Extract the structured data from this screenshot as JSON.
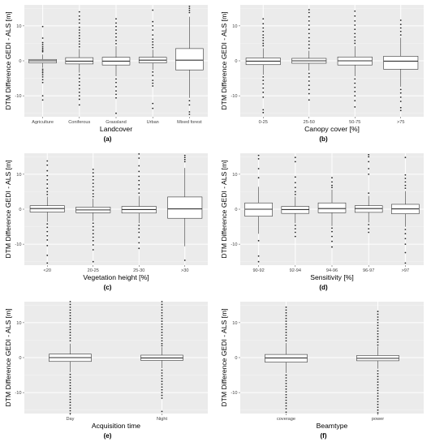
{
  "chart_data": [
    {
      "type": "box",
      "panel_label": "(a)",
      "xlabel": "Landcover",
      "ylabel": "DTM Difference GEDI - ALS [m]",
      "ylim": [
        -16,
        16
      ],
      "yticks": [
        10,
        0,
        -10
      ],
      "categories": [
        "Agriculture",
        "Coniferous",
        "Grassland",
        "Urban",
        "Mixed forest"
      ],
      "boxes": [
        {
          "q1": -0.6,
          "median": 0.0,
          "q3": 0.4,
          "whisker_low": -2.0,
          "whisker_high": 1.8,
          "outliers": [
            9.8,
            6.5,
            5.2,
            4.6,
            4.0,
            3.5,
            3.0,
            2.6,
            -2.4,
            -2.9,
            -3.4,
            -4.0,
            -4.6,
            -5.4,
            -6.2,
            -10.0,
            -11.2
          ]
        },
        {
          "q1": -0.9,
          "median": -0.1,
          "q3": 0.9,
          "whisker_low": -3.4,
          "whisker_high": 3.4,
          "outliers": [
            14.0,
            12.8,
            11.8,
            10.8,
            9.6,
            8.8,
            8.0,
            7.2,
            6.4,
            5.6,
            4.8,
            4.0,
            -4.0,
            -5.0,
            -6.0,
            -7.0,
            -8.0,
            -9.0,
            -10.0,
            -11.0,
            -12.6
          ]
        },
        {
          "q1": -1.2,
          "median": -0.1,
          "q3": 1.0,
          "whisker_low": -4.4,
          "whisker_high": 4.2,
          "outliers": [
            12.0,
            10.8,
            9.8,
            8.8,
            7.8,
            6.8,
            5.8,
            4.9,
            -5.2,
            -6.2,
            -7.4,
            -8.6,
            -9.6,
            -10.6,
            -15.0
          ]
        },
        {
          "q1": -0.6,
          "median": 0.2,
          "q3": 1.0,
          "whisker_low": -2.6,
          "whisker_high": 3.2,
          "outliers": [
            14.5,
            11.2,
            10.0,
            8.8,
            7.4,
            6.2,
            5.4,
            4.6,
            3.8,
            -3.2,
            -4.2,
            -5.6,
            -6.4,
            -7.2,
            -12.2,
            -13.6
          ]
        },
        {
          "q1": -2.6,
          "median": 0.2,
          "q3": 3.5,
          "whisker_low": -10.6,
          "whisker_high": 12.6,
          "outliers": [
            15.6,
            15.0,
            14.4,
            13.8,
            -11.4,
            -12.6,
            -14.6,
            -15.3
          ]
        }
      ]
    },
    {
      "type": "box",
      "panel_label": "(b)",
      "xlabel": "Canopy cover [%]",
      "ylabel": "DTM Difference GEDI - ALS [m]",
      "ylim": [
        -16,
        16
      ],
      "yticks": [
        10,
        0,
        -10
      ],
      "categories": [
        "0-25",
        "25-50",
        "50-75",
        ">75"
      ],
      "boxes": [
        {
          "q1": -1.1,
          "median": -0.1,
          "q3": 0.8,
          "whisker_low": -4.0,
          "whisker_high": 3.6,
          "outliers": [
            12.0,
            10.6,
            9.4,
            8.4,
            7.4,
            6.6,
            5.8,
            5.0,
            4.3,
            -4.6,
            -5.6,
            -6.6,
            -7.8,
            -9.0,
            -10.4,
            -14.0,
            -14.8
          ]
        },
        {
          "q1": -0.7,
          "median": 0.0,
          "q3": 0.7,
          "whisker_low": -2.8,
          "whisker_high": 2.9,
          "outliers": [
            14.6,
            13.8,
            12.6,
            11.4,
            10.2,
            9.0,
            7.8,
            6.6,
            5.6,
            4.6,
            3.6,
            -3.6,
            -4.6,
            -5.8,
            -7.0,
            -8.2,
            -9.4,
            -11.2
          ]
        },
        {
          "q1": -1.2,
          "median": 0.0,
          "q3": 1.1,
          "whisker_low": -4.4,
          "whisker_high": 4.2,
          "outliers": [
            14.2,
            12.8,
            11.4,
            10.2,
            9.0,
            7.8,
            6.8,
            5.8,
            5.0,
            -5.2,
            -6.4,
            -7.6,
            -8.8,
            -10.0,
            -11.4,
            -13.2
          ]
        },
        {
          "q1": -2.4,
          "median": -0.1,
          "q3": 1.3,
          "whisker_low": -7.4,
          "whisker_high": 6.6,
          "outliers": [
            11.6,
            10.4,
            9.4,
            8.4,
            7.4,
            -8.2,
            -9.2,
            -10.4,
            -11.6,
            -13.4,
            -14.2
          ]
        }
      ]
    },
    {
      "type": "box",
      "panel_label": "(c)",
      "xlabel": "Vegetation height [%]",
      "ylabel": "DTM Difference GEDI - ALS [m]",
      "ylim": [
        -16,
        16
      ],
      "yticks": [
        10,
        0,
        -10
      ],
      "categories": [
        "<20",
        "20-25",
        "25-30",
        ">30"
      ],
      "boxes": [
        {
          "q1": -0.8,
          "median": 0.2,
          "q3": 1.0,
          "whisker_low": -3.6,
          "whisker_high": 3.6,
          "outliers": [
            13.8,
            12.6,
            11.0,
            9.6,
            8.4,
            7.2,
            6.0,
            5.0,
            4.2,
            -4.2,
            -5.2,
            -6.4,
            -7.6,
            -8.8,
            -10.4,
            -13.2,
            -15.4
          ]
        },
        {
          "q1": -1.0,
          "median": -0.2,
          "q3": 0.6,
          "whisker_low": -3.4,
          "whisker_high": 3.0,
          "outliers": [
            11.4,
            10.4,
            9.4,
            8.4,
            7.4,
            6.4,
            5.4,
            4.4,
            3.6,
            -4.0,
            -5.0,
            -6.0,
            -7.0,
            -8.0,
            -9.0,
            -10.2,
            -11.6,
            -15.0
          ]
        },
        {
          "q1": -1.1,
          "median": -0.1,
          "q3": 0.8,
          "whisker_low": -4.0,
          "whisker_high": 3.8,
          "outliers": [
            15.8,
            14.6,
            12.4,
            10.8,
            9.4,
            8.2,
            7.0,
            5.8,
            4.6,
            -4.6,
            -5.6,
            -6.6,
            -8.0,
            -9.6,
            -11.2
          ]
        },
        {
          "q1": -2.6,
          "median": 0.1,
          "q3": 3.5,
          "whisker_low": -10.6,
          "whisker_high": 11.8,
          "outliers": [
            15.4,
            14.8,
            14.2,
            13.6,
            -14.6
          ]
        }
      ]
    },
    {
      "type": "box",
      "panel_label": "(d)",
      "xlabel": "Sensitivity [%]",
      "ylabel": "DTM Difference GEDI - ALS [m]",
      "ylim": [
        -16,
        16
      ],
      "yticks": [
        10,
        0,
        -10
      ],
      "categories": [
        "90-92",
        "92-94",
        "94-96",
        "96-97",
        ">97"
      ],
      "boxes": [
        {
          "q1": -2.0,
          "median": 0.0,
          "q3": 1.8,
          "whisker_low": -7.0,
          "whisker_high": 6.4,
          "outliers": [
            15.4,
            14.4,
            11.6,
            9.0,
            -9.0,
            -13.4,
            -15.0
          ]
        },
        {
          "q1": -1.2,
          "median": -0.1,
          "q3": 0.8,
          "whisker_low": -4.0,
          "whisker_high": 3.6,
          "outliers": [
            14.8,
            13.6,
            9.2,
            7.6,
            6.2,
            5.0,
            4.2,
            -4.6,
            -5.6,
            -6.6,
            -7.8
          ]
        },
        {
          "q1": -1.0,
          "median": 0.2,
          "q3": 1.8,
          "whisker_low": -4.8,
          "whisker_high": 5.6,
          "outliers": [
            9.0,
            7.8,
            6.8,
            6.2,
            -5.4,
            -6.4,
            -7.8,
            -9.2,
            -10.8
          ]
        },
        {
          "q1": -0.9,
          "median": 0.2,
          "q3": 1.0,
          "whisker_low": -3.8,
          "whisker_high": 3.8,
          "outliers": [
            15.6,
            15.0,
            13.6,
            11.6,
            10.0,
            4.6,
            -4.4,
            -5.6,
            -6.6
          ]
        },
        {
          "q1": -1.3,
          "median": 0.1,
          "q3": 1.4,
          "whisker_low": -5.0,
          "whisker_high": 5.2,
          "outliers": [
            14.8,
            9.8,
            8.8,
            7.8,
            6.8,
            6.0,
            -5.8,
            -7.0,
            -8.4,
            -10.0,
            -12.4,
            -15.4
          ]
        }
      ]
    },
    {
      "type": "box",
      "panel_label": "(e)",
      "xlabel": "Acquisition time",
      "ylabel": "DTM Difference GEDI - ALS [m]",
      "ylim": [
        -16,
        16
      ],
      "yticks": [
        10,
        0,
        -10
      ],
      "categories": [
        "Day",
        "Night"
      ],
      "boxes": [
        {
          "q1": -1.1,
          "median": 0.0,
          "q3": 1.0,
          "whisker_low": -4.2,
          "whisker_high": 4.0,
          "outliers": [
            16.0,
            15.2,
            14.4,
            13.6,
            12.8,
            12.0,
            11.2,
            10.4,
            9.6,
            8.8,
            8.0,
            7.2,
            6.4,
            5.6,
            4.8,
            -4.8,
            -5.6,
            -6.4,
            -7.2,
            -8.0,
            -8.8,
            -9.6,
            -10.4,
            -11.2,
            -12.0,
            -12.8,
            -13.6,
            -14.4,
            -15.2,
            -16.0
          ]
        },
        {
          "q1": -0.8,
          "median": -0.1,
          "q3": 0.7,
          "whisker_low": -3.0,
          "whisker_high": 3.0,
          "outliers": [
            16.0,
            15.2,
            14.4,
            13.6,
            12.8,
            12.0,
            11.2,
            10.4,
            9.6,
            8.8,
            8.0,
            7.2,
            6.4,
            5.6,
            4.8,
            4.0,
            3.4,
            -3.6,
            -4.4,
            -5.2,
            -6.0,
            -6.8,
            -7.6,
            -8.4,
            -9.2,
            -10.0,
            -10.8,
            -11.6,
            -15.4
          ]
        }
      ]
    },
    {
      "type": "box",
      "panel_label": "(f)",
      "xlabel": "Beamtype",
      "ylabel": "DTM Difference GEDI - ALS [m]",
      "ylim": [
        -16,
        16
      ],
      "yticks": [
        10,
        0,
        -10
      ],
      "categories": [
        "coverage",
        "power"
      ],
      "boxes": [
        {
          "q1": -1.3,
          "median": -0.1,
          "q3": 0.9,
          "whisker_low": -4.4,
          "whisker_high": 4.2,
          "outliers": [
            14.4,
            13.6,
            12.8,
            12.0,
            11.2,
            10.4,
            9.6,
            8.8,
            8.0,
            7.2,
            6.4,
            5.6,
            4.8,
            -5.0,
            -5.8,
            -6.6,
            -7.4,
            -8.2,
            -9.0,
            -9.8,
            -10.6,
            -11.4,
            -12.2,
            -13.0,
            -13.8,
            -14.6,
            -15.6
          ]
        },
        {
          "q1": -0.9,
          "median": -0.2,
          "q3": 0.6,
          "whisker_low": -3.2,
          "whisker_high": 3.2,
          "outliers": [
            13.2,
            12.4,
            11.6,
            10.8,
            10.0,
            9.2,
            8.4,
            7.6,
            6.8,
            6.0,
            5.2,
            4.4,
            3.6,
            -3.8,
            -4.6,
            -5.4,
            -6.2,
            -7.0,
            -7.8,
            -8.6,
            -9.4,
            -10.2,
            -11.0,
            -11.8,
            -12.6,
            -13.4,
            -14.2,
            -15.0,
            -15.8
          ]
        }
      ]
    }
  ]
}
